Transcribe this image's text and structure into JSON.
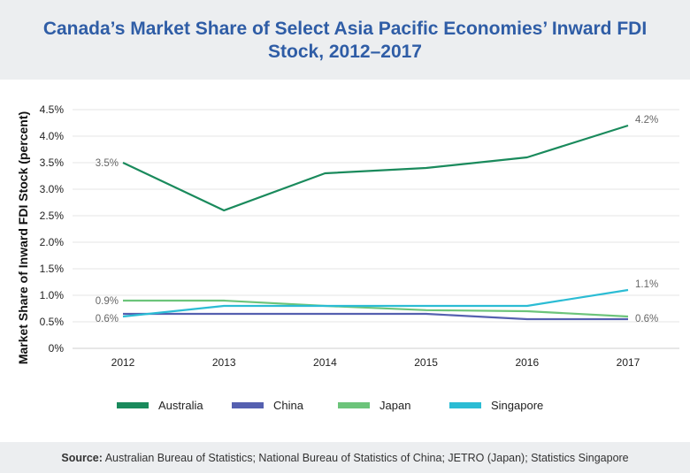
{
  "title": "Canada’s Market Share of Select Asia Pacific Economies’ Inward FDI Stock, 2012–2017",
  "source_label": "Source:",
  "source_text": " Australian Bureau of Statistics; National Bureau of Statistics of China; JETRO (Japan); Statistics Singapore",
  "chart_data": {
    "type": "line",
    "title": "Canada’s Market Share of Select Asia Pacific Economies’ Inward FDI Stock, 2012–2017",
    "xlabel": "",
    "ylabel": "Market Share of Inward FDI Stock (percent)",
    "x": [
      "2012",
      "2013",
      "2014",
      "2015",
      "2016",
      "2017"
    ],
    "ylim": [
      0,
      4.5
    ],
    "yticks": [
      0,
      0.5,
      1.0,
      1.5,
      2.0,
      2.5,
      3.0,
      3.5,
      4.0,
      4.5
    ],
    "ytick_labels": [
      "0%",
      "0.5%",
      "1.0%",
      "1.5%",
      "2.0%",
      "2.5%",
      "3.0%",
      "3.5%",
      "4.0%",
      "4.5%"
    ],
    "grid": true,
    "legend_position": "bottom",
    "series": [
      {
        "name": "Australia",
        "color": "#1a8a5c",
        "values": [
          3.5,
          2.6,
          3.3,
          3.4,
          3.6,
          4.2
        ]
      },
      {
        "name": "China",
        "color": "#5560b0",
        "values": [
          0.65,
          0.65,
          0.65,
          0.65,
          0.55,
          0.55
        ]
      },
      {
        "name": "Japan",
        "color": "#6cc47a",
        "values": [
          0.9,
          0.9,
          0.8,
          0.72,
          0.7,
          0.6
        ]
      },
      {
        "name": "Singapore",
        "color": "#2bbcd4",
        "values": [
          0.6,
          0.8,
          0.8,
          0.8,
          0.8,
          1.1
        ]
      }
    ],
    "annotations": [
      {
        "series": "Australia",
        "x": "2012",
        "text": "3.5%",
        "side": "left"
      },
      {
        "series": "Australia",
        "x": "2017",
        "text": "4.2%",
        "side": "right"
      },
      {
        "series": "Japan",
        "x": "2012",
        "text": "0.9%",
        "side": "left"
      },
      {
        "series": "Singapore",
        "x": "2012",
        "text": "0.6%",
        "side": "left"
      },
      {
        "series": "Singapore",
        "x": "2017",
        "text": "1.1%",
        "side": "right"
      },
      {
        "series": "Japan",
        "x": "2017",
        "text": "0.6%",
        "side": "right"
      }
    ]
  }
}
